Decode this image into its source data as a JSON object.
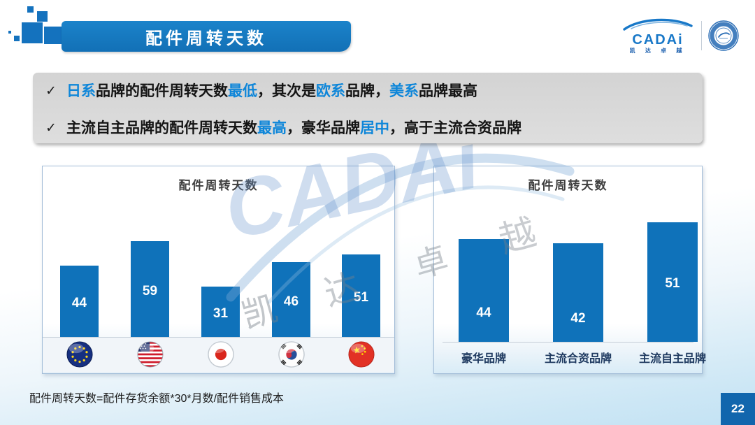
{
  "header": {
    "title": "配件周转天数"
  },
  "logo": {
    "brand": "CADAi",
    "subtitle": "凯 达 卓 越",
    "emblem": "association-badge"
  },
  "callout": {
    "marker": "✓",
    "bullets": [
      {
        "segments": [
          {
            "text": "日系",
            "highlight": true
          },
          {
            "text": "品牌的配件周转天数",
            "highlight": false
          },
          {
            "text": "最低",
            "highlight": true
          },
          {
            "text": "，其次是",
            "highlight": false
          },
          {
            "text": "欧系",
            "highlight": true
          },
          {
            "text": "品牌，",
            "highlight": false
          },
          {
            "text": "美系",
            "highlight": true
          },
          {
            "text": "品牌最高",
            "highlight": false
          }
        ]
      },
      {
        "segments": [
          {
            "text": "主流自主品牌的配件周转天数",
            "highlight": false
          },
          {
            "text": "最高",
            "highlight": true
          },
          {
            "text": "，豪华品牌",
            "highlight": false
          },
          {
            "text": "居中",
            "highlight": true
          },
          {
            "text": "，高于主流合资品牌",
            "highlight": false
          }
        ]
      }
    ]
  },
  "chart_data": [
    {
      "type": "bar",
      "title": "配件周转天数",
      "categories": [
        "EU",
        "US",
        "Japan",
        "South Korea",
        "China"
      ],
      "category_icons": [
        "eu-flag-icon",
        "usa-flag-icon",
        "japan-flag-icon",
        "korea-flag-icon",
        "china-flag-icon"
      ],
      "values": [
        44,
        59,
        31,
        46,
        51
      ],
      "xlabel": "",
      "ylabel": "",
      "ylim": [
        0,
        65
      ],
      "grid": false,
      "value_labels": "inside-top",
      "legend": "none"
    },
    {
      "type": "bar",
      "title": "配件周转天数",
      "categories": [
        "豪华品牌",
        "主流合资品牌",
        "主流自主品牌"
      ],
      "values": [
        44,
        42,
        51
      ],
      "xlabel": "",
      "ylabel": "",
      "ylim": [
        0,
        60
      ],
      "grid": false,
      "value_labels": "inside",
      "legend": "none"
    }
  ],
  "watermark": {
    "text": "CADAi",
    "chars": [
      "凯",
      "达",
      "卓",
      "越"
    ]
  },
  "footnote": "配件周转天数=配件存货余额*30*月数/配件销售成本",
  "page_number": "22",
  "colors": {
    "bar": "#0F72BA",
    "banner": "#1577C0",
    "highlight": "#0E86D9",
    "navy": "#1F3A60",
    "page_badge": "#1166AD"
  }
}
